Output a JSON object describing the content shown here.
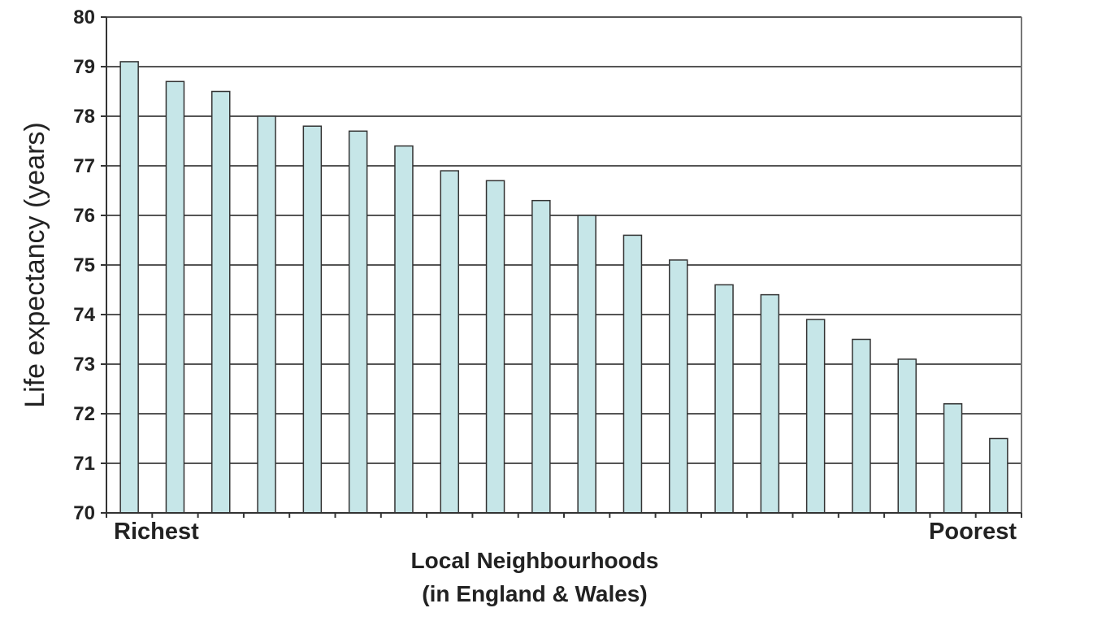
{
  "chart_data": {
    "type": "bar",
    "xlabel_lines": [
      "Local Neighbourhoods",
      "(in England & Wales)"
    ],
    "ylabel": "Life expectancy (years)",
    "x_end_labels": {
      "left": "Richest",
      "right": "Poorest"
    },
    "ylim": [
      70,
      80
    ],
    "yticks": [
      "70",
      "71",
      "72",
      "73",
      "74",
      "75",
      "76",
      "77",
      "78",
      "79",
      "80"
    ],
    "values": [
      79.1,
      78.7,
      78.5,
      78.0,
      77.8,
      77.7,
      77.4,
      76.9,
      76.7,
      76.3,
      76.0,
      75.6,
      75.1,
      74.6,
      74.4,
      73.9,
      73.5,
      73.1,
      72.2,
      71.5
    ],
    "grid": true,
    "legend": "none",
    "bar_color": "#c6e6e8",
    "bar_edge_color": "#333333",
    "grid_color": "#555555"
  }
}
